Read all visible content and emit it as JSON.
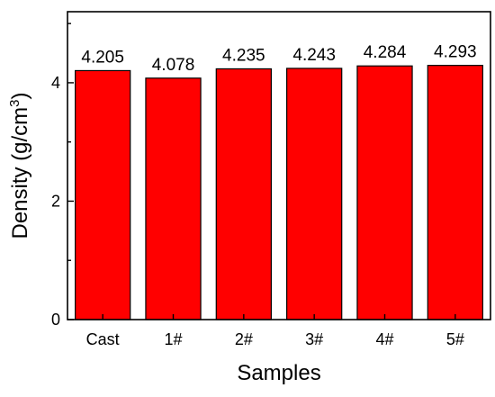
{
  "chart_data": {
    "type": "bar",
    "categories": [
      "Cast",
      "1#",
      "2#",
      "3#",
      "4#",
      "5#"
    ],
    "values": [
      4.205,
      4.078,
      4.235,
      4.243,
      4.284,
      4.293
    ],
    "value_labels": [
      "4.205",
      "4.078",
      "4.235",
      "4.243",
      "4.284",
      "4.293"
    ],
    "title": "",
    "xlabel": "Samples",
    "ylabel": "Density (g/cm",
    "ylabel_superscript": "3",
    "ylabel_suffix": ")",
    "ylim": [
      0,
      5.2
    ],
    "yticks": [
      0,
      2,
      4
    ],
    "ytick_labels": [
      "0",
      "2",
      "4"
    ],
    "bar_color": "#ff0000",
    "grid": false,
    "legend": "none"
  }
}
